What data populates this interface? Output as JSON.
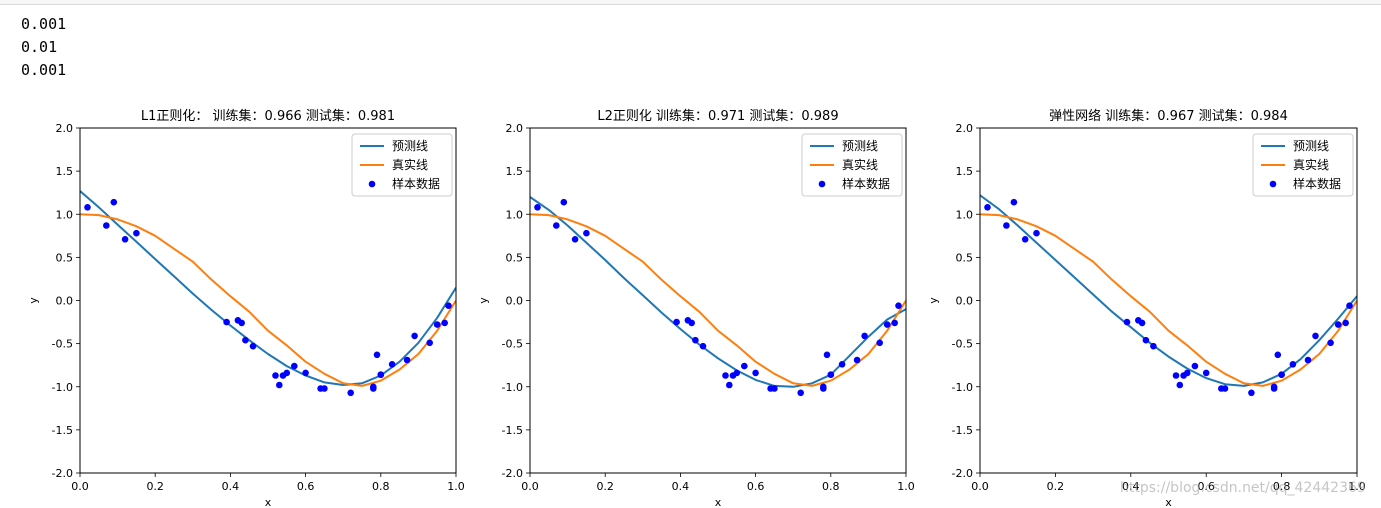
{
  "output_lines": [
    "0.001",
    "0.01",
    "0.001"
  ],
  "watermark": "https://blog.csdn.net/qq_42442369",
  "colors": {
    "pred": "#1f77b4",
    "true": "#ff7f0e",
    "points": "#0000ff"
  },
  "chart_data": [
    {
      "type": "scatter+line",
      "title": "L1正则化： 训练集：0.966 测试集：0.981",
      "xlabel": "x",
      "ylabel": "y",
      "xlim": [
        0.0,
        1.0
      ],
      "ylim": [
        -2.0,
        2.0
      ],
      "xticks": [
        "0.0",
        "0.2",
        "0.4",
        "0.6",
        "0.8",
        "1.0"
      ],
      "yticks": [
        "2.0",
        "1.5",
        "1.0",
        "0.5",
        "0.0",
        "-0.5",
        "-1.0",
        "-1.5",
        "-2.0"
      ],
      "legend": {
        "placement": "top-right",
        "entries": [
          "预测线",
          "真实线",
          "样本数据"
        ]
      },
      "pred_line": {
        "x": [
          0.0,
          0.05,
          0.1,
          0.15,
          0.2,
          0.25,
          0.3,
          0.35,
          0.4,
          0.45,
          0.5,
          0.55,
          0.6,
          0.65,
          0.7,
          0.75,
          0.8,
          0.85,
          0.9,
          0.95,
          1.0
        ],
        "y": [
          1.27,
          1.08,
          0.88,
          0.68,
          0.48,
          0.28,
          0.08,
          -0.11,
          -0.29,
          -0.46,
          -0.62,
          -0.76,
          -0.87,
          -0.95,
          -0.98,
          -0.96,
          -0.87,
          -0.71,
          -0.49,
          -0.2,
          0.15
        ]
      },
      "true_line": {
        "x": [
          0.0,
          0.05,
          0.1,
          0.15,
          0.2,
          0.25,
          0.3,
          0.35,
          0.4,
          0.45,
          0.5,
          0.55,
          0.6,
          0.65,
          0.7,
          0.75,
          0.8,
          0.85,
          0.9,
          0.95,
          1.0
        ],
        "y": [
          1.0,
          0.99,
          0.94,
          0.86,
          0.75,
          0.6,
          0.45,
          0.24,
          0.05,
          -0.13,
          -0.35,
          -0.52,
          -0.71,
          -0.85,
          -0.96,
          -0.99,
          -0.93,
          -0.8,
          -0.62,
          -0.35,
          0.0
        ]
      },
      "points": {
        "x": [
          0.02,
          0.07,
          0.09,
          0.12,
          0.15,
          0.39,
          0.42,
          0.43,
          0.44,
          0.46,
          0.52,
          0.53,
          0.54,
          0.55,
          0.57,
          0.6,
          0.64,
          0.65,
          0.72,
          0.78,
          0.78,
          0.79,
          0.8,
          0.8,
          0.83,
          0.87,
          0.89,
          0.93,
          0.95,
          0.97,
          0.98
        ],
        "y": [
          1.08,
          0.87,
          1.14,
          0.71,
          0.78,
          -0.25,
          -0.23,
          -0.26,
          -0.46,
          -0.53,
          -0.87,
          -0.98,
          -0.87,
          -0.84,
          -0.76,
          -0.84,
          -1.02,
          -1.02,
          -1.07,
          -1.0,
          -1.02,
          -0.63,
          -0.86,
          -0.86,
          -0.74,
          -0.69,
          -0.41,
          -0.49,
          -0.28,
          -0.26,
          -0.06
        ]
      }
    },
    {
      "type": "scatter+line",
      "title": "L2正则化 训练集：0.971 测试集：0.989",
      "xlabel": "x",
      "ylabel": "y",
      "xlim": [
        0.0,
        1.0
      ],
      "ylim": [
        -2.0,
        2.0
      ],
      "xticks": [
        "0.0",
        "0.2",
        "0.4",
        "0.6",
        "0.8",
        "1.0"
      ],
      "yticks": [
        "2.0",
        "1.5",
        "1.0",
        "0.5",
        "0.0",
        "-0.5",
        "-1.0",
        "-1.5",
        "-2.0"
      ],
      "legend": {
        "placement": "top-right",
        "entries": [
          "预测线",
          "真实线",
          "样本数据"
        ]
      },
      "pred_line": {
        "x": [
          0.0,
          0.05,
          0.1,
          0.15,
          0.2,
          0.25,
          0.3,
          0.35,
          0.4,
          0.45,
          0.5,
          0.55,
          0.6,
          0.65,
          0.7,
          0.75,
          0.8,
          0.85,
          0.9,
          0.95,
          1.0
        ],
        "y": [
          1.2,
          1.05,
          0.87,
          0.67,
          0.47,
          0.26,
          0.06,
          -0.14,
          -0.33,
          -0.51,
          -0.67,
          -0.81,
          -0.92,
          -0.99,
          -1.0,
          -0.96,
          -0.86,
          -0.64,
          -0.42,
          -0.22,
          -0.1
        ]
      },
      "true_line": {
        "x": [
          0.0,
          0.05,
          0.1,
          0.15,
          0.2,
          0.25,
          0.3,
          0.35,
          0.4,
          0.45,
          0.5,
          0.55,
          0.6,
          0.65,
          0.7,
          0.75,
          0.8,
          0.85,
          0.9,
          0.95,
          1.0
        ],
        "y": [
          1.0,
          0.99,
          0.94,
          0.86,
          0.75,
          0.6,
          0.45,
          0.24,
          0.05,
          -0.13,
          -0.35,
          -0.52,
          -0.71,
          -0.85,
          -0.96,
          -0.99,
          -0.93,
          -0.8,
          -0.62,
          -0.35,
          0.0
        ]
      },
      "points": {
        "x": [
          0.02,
          0.07,
          0.09,
          0.12,
          0.15,
          0.39,
          0.42,
          0.43,
          0.44,
          0.46,
          0.52,
          0.53,
          0.54,
          0.55,
          0.57,
          0.6,
          0.64,
          0.65,
          0.72,
          0.78,
          0.78,
          0.79,
          0.8,
          0.8,
          0.83,
          0.87,
          0.89,
          0.93,
          0.95,
          0.97,
          0.98
        ],
        "y": [
          1.08,
          0.87,
          1.14,
          0.71,
          0.78,
          -0.25,
          -0.23,
          -0.26,
          -0.46,
          -0.53,
          -0.87,
          -0.98,
          -0.87,
          -0.84,
          -0.76,
          -0.84,
          -1.02,
          -1.02,
          -1.07,
          -1.0,
          -1.02,
          -0.63,
          -0.86,
          -0.86,
          -0.74,
          -0.69,
          -0.41,
          -0.49,
          -0.28,
          -0.26,
          -0.06
        ]
      }
    },
    {
      "type": "scatter+line",
      "title": "弹性网络 训练集：0.967 测试集：0.984",
      "xlabel": "x",
      "ylabel": "y",
      "xlim": [
        0.0,
        1.0
      ],
      "ylim": [
        -2.0,
        2.0
      ],
      "xticks": [
        "0.0",
        "0.2",
        "0.4",
        "0.6",
        "0.8",
        "1.0"
      ],
      "yticks": [
        "2.0",
        "1.5",
        "1.0",
        "0.5",
        "0.0",
        "-0.5",
        "-1.0",
        "-1.5",
        "-2.0"
      ],
      "legend": {
        "placement": "top-right",
        "entries": [
          "预测线",
          "真实线",
          "样本数据"
        ]
      },
      "pred_line": {
        "x": [
          0.0,
          0.05,
          0.1,
          0.15,
          0.2,
          0.25,
          0.3,
          0.35,
          0.4,
          0.45,
          0.5,
          0.55,
          0.6,
          0.65,
          0.7,
          0.75,
          0.8,
          0.85,
          0.9,
          0.95,
          1.0
        ],
        "y": [
          1.22,
          1.06,
          0.87,
          0.67,
          0.47,
          0.27,
          0.07,
          -0.13,
          -0.31,
          -0.49,
          -0.65,
          -0.79,
          -0.9,
          -0.97,
          -0.99,
          -0.95,
          -0.85,
          -0.68,
          -0.46,
          -0.21,
          0.05
        ]
      },
      "true_line": {
        "x": [
          0.0,
          0.05,
          0.1,
          0.15,
          0.2,
          0.25,
          0.3,
          0.35,
          0.4,
          0.45,
          0.5,
          0.55,
          0.6,
          0.65,
          0.7,
          0.75,
          0.8,
          0.85,
          0.9,
          0.95,
          1.0
        ],
        "y": [
          1.0,
          0.99,
          0.94,
          0.86,
          0.75,
          0.6,
          0.45,
          0.24,
          0.05,
          -0.13,
          -0.35,
          -0.52,
          -0.71,
          -0.85,
          -0.96,
          -0.99,
          -0.93,
          -0.8,
          -0.62,
          -0.35,
          0.0
        ]
      },
      "points": {
        "x": [
          0.02,
          0.07,
          0.09,
          0.12,
          0.15,
          0.39,
          0.42,
          0.43,
          0.44,
          0.46,
          0.52,
          0.53,
          0.54,
          0.55,
          0.57,
          0.6,
          0.64,
          0.65,
          0.72,
          0.78,
          0.78,
          0.79,
          0.8,
          0.8,
          0.83,
          0.87,
          0.89,
          0.93,
          0.95,
          0.97,
          0.98
        ],
        "y": [
          1.08,
          0.87,
          1.14,
          0.71,
          0.78,
          -0.25,
          -0.23,
          -0.26,
          -0.46,
          -0.53,
          -0.87,
          -0.98,
          -0.87,
          -0.84,
          -0.76,
          -0.84,
          -1.02,
          -1.02,
          -1.07,
          -1.0,
          -1.02,
          -0.63,
          -0.86,
          -0.86,
          -0.74,
          -0.69,
          -0.41,
          -0.49,
          -0.28,
          -0.26,
          -0.06
        ]
      }
    }
  ]
}
